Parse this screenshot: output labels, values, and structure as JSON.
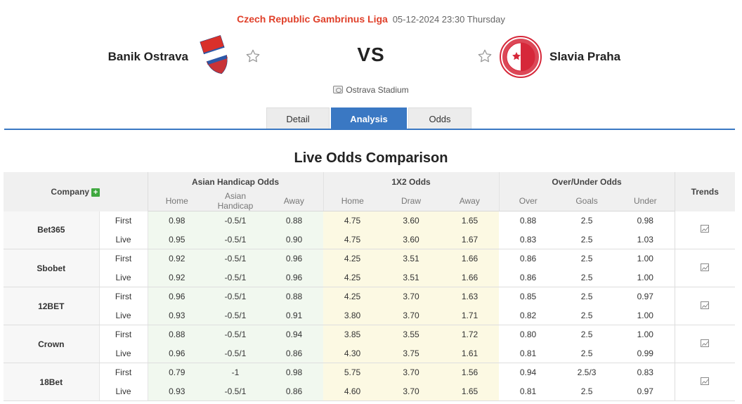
{
  "match": {
    "league": "Czech Republic Gambrinus Liga",
    "datetime": "05-12-2024 23:30 Thursday",
    "home_team": "Banik Ostrava",
    "away_team": "Slavia Praha",
    "vs_label": "VS",
    "stadium": "Ostrava Stadium",
    "home_logo_text": "FC BANÍK OSTRAVA",
    "away_logo_text": "SK SLAVIA PRAHA FOTBAL"
  },
  "tabs": [
    {
      "label": "Detail",
      "active": false
    },
    {
      "label": "Analysis",
      "active": true
    },
    {
      "label": "Odds",
      "active": false
    }
  ],
  "section_title": "Live Odds Comparison",
  "table": {
    "company_header": "Company",
    "groups": [
      "Asian Handicap Odds",
      "1X2 Odds",
      "Over/Under Odds"
    ],
    "trends_header": "Trends",
    "subheaders": [
      "Home",
      "Asian Handicap",
      "Away",
      "Home",
      "Draw",
      "Away",
      "Over",
      "Goals",
      "Under"
    ],
    "rows": [
      {
        "company": "Bet365",
        "first": {
          "kind": "First",
          "ah": [
            "0.98",
            "-0.5/1",
            "0.88"
          ],
          "x12": [
            "4.75",
            "3.60",
            "1.65"
          ],
          "ou": [
            "0.88",
            "2.5",
            "0.98"
          ]
        },
        "live": {
          "kind": "Live",
          "ah": [
            "0.95",
            "-0.5/1",
            "0.90"
          ],
          "x12": [
            "4.75",
            "3.60",
            "1.67"
          ],
          "ou": [
            "0.83",
            "2.5",
            "1.03"
          ]
        }
      },
      {
        "company": "Sbobet",
        "first": {
          "kind": "First",
          "ah": [
            "0.92",
            "-0.5/1",
            "0.96"
          ],
          "x12": [
            "4.25",
            "3.51",
            "1.66"
          ],
          "ou": [
            "0.86",
            "2.5",
            "1.00"
          ]
        },
        "live": {
          "kind": "Live",
          "ah": [
            "0.92",
            "-0.5/1",
            "0.96"
          ],
          "x12": [
            "4.25",
            "3.51",
            "1.66"
          ],
          "ou": [
            "0.86",
            "2.5",
            "1.00"
          ]
        }
      },
      {
        "company": "12BET",
        "first": {
          "kind": "First",
          "ah": [
            "0.96",
            "-0.5/1",
            "0.88"
          ],
          "x12": [
            "4.25",
            "3.70",
            "1.63"
          ],
          "ou": [
            "0.85",
            "2.5",
            "0.97"
          ]
        },
        "live": {
          "kind": "Live",
          "ah": [
            "0.93",
            "-0.5/1",
            "0.91"
          ],
          "x12": [
            "3.80",
            "3.70",
            "1.71"
          ],
          "ou": [
            "0.82",
            "2.5",
            "1.00"
          ]
        }
      },
      {
        "company": "Crown",
        "first": {
          "kind": "First",
          "ah": [
            "0.88",
            "-0.5/1",
            "0.94"
          ],
          "x12": [
            "3.85",
            "3.55",
            "1.72"
          ],
          "ou": [
            "0.80",
            "2.5",
            "1.00"
          ]
        },
        "live": {
          "kind": "Live",
          "ah": [
            "0.96",
            "-0.5/1",
            "0.86"
          ],
          "x12": [
            "4.30",
            "3.75",
            "1.61"
          ],
          "ou": [
            "0.81",
            "2.5",
            "0.99"
          ]
        }
      },
      {
        "company": "18Bet",
        "first": {
          "kind": "First",
          "ah": [
            "0.79",
            "-1",
            "0.98"
          ],
          "x12": [
            "5.75",
            "3.70",
            "1.56"
          ],
          "ou": [
            "0.94",
            "2.5/3",
            "0.83"
          ]
        },
        "live": {
          "kind": "Live",
          "ah": [
            "0.93",
            "-0.5/1",
            "0.86"
          ],
          "x12": [
            "4.60",
            "3.70",
            "1.65"
          ],
          "ou": [
            "0.81",
            "2.5",
            "0.97"
          ]
        }
      }
    ]
  },
  "colors": {
    "league": "#e0402a",
    "tab_active": "#3a78c3",
    "ah_bg": "#f1f8ef",
    "x12_bg": "#fcf9e3",
    "plus_green": "#3fa83f"
  },
  "icons": [
    "star-icon",
    "stadium-icon",
    "plus-icon",
    "trend-chart-icon"
  ]
}
